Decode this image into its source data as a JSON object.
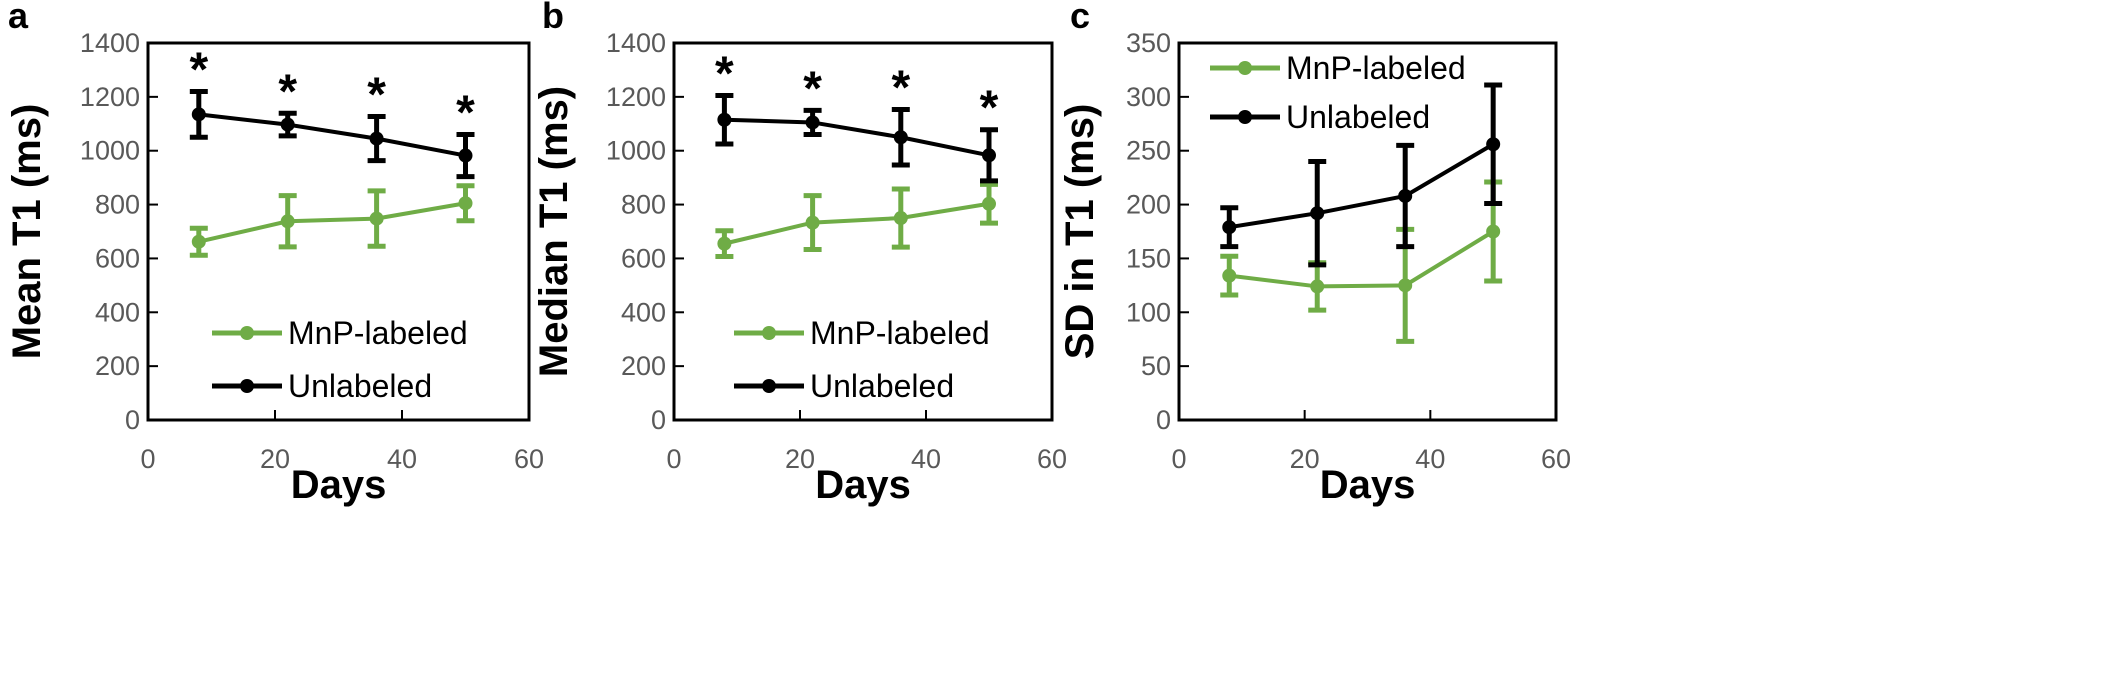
{
  "chart_data": [
    {
      "panel": "a",
      "type": "line",
      "xlabel": "Days",
      "ylabel": "Mean T1 (ms)",
      "xlim": [
        0,
        60
      ],
      "ylim": [
        0,
        1400
      ],
      "x_ticks": [
        "0",
        "20",
        "40",
        "60"
      ],
      "y_ticks": [
        "0",
        "200",
        "400",
        "600",
        "800",
        "1000",
        "1200",
        "1400"
      ],
      "grid": false,
      "legend": "center",
      "x": [
        8,
        22,
        36,
        50
      ],
      "series": [
        {
          "name": "MnP-labeled",
          "color": "#6fac46",
          "values": [
            662,
            738,
            748,
            805
          ],
          "errors": [
            50,
            95,
            103,
            65
          ]
        },
        {
          "name": "Unlabeled",
          "color": "#000000",
          "values": [
            1135,
            1097,
            1045,
            982
          ],
          "errors": [
            85,
            42,
            82,
            78
          ]
        }
      ],
      "annotations": [
        {
          "text": "*",
          "x": 8
        },
        {
          "text": "*",
          "x": 22
        },
        {
          "text": "*",
          "x": 36
        },
        {
          "text": "*",
          "x": 50
        }
      ]
    },
    {
      "panel": "b",
      "type": "line",
      "xlabel": "Days",
      "ylabel": "Median T1 (ms)",
      "xlim": [
        0,
        60
      ],
      "ylim": [
        0,
        1400
      ],
      "x_ticks": [
        "0",
        "20",
        "40",
        "60"
      ],
      "y_ticks": [
        "0",
        "200",
        "400",
        "600",
        "800",
        "1000",
        "1200",
        "1400"
      ],
      "grid": false,
      "legend": "center",
      "x": [
        8,
        22,
        36,
        50
      ],
      "series": [
        {
          "name": "MnP-labeled",
          "color": "#6fac46",
          "values": [
            655,
            733,
            750,
            803
          ],
          "errors": [
            48,
            100,
            108,
            72
          ]
        },
        {
          "name": "Unlabeled",
          "color": "#000000",
          "values": [
            1115,
            1105,
            1050,
            983
          ],
          "errors": [
            90,
            45,
            103,
            95
          ]
        }
      ],
      "annotations": [
        {
          "text": "*",
          "x": 8
        },
        {
          "text": "*",
          "x": 22
        },
        {
          "text": "*",
          "x": 36
        },
        {
          "text": "*",
          "x": 50
        }
      ]
    },
    {
      "panel": "c",
      "type": "line",
      "xlabel": "Days",
      "ylabel": "SD in T1 (ms)",
      "xlim": [
        0,
        60
      ],
      "ylim": [
        0,
        350
      ],
      "x_ticks": [
        "0",
        "20",
        "40",
        "60"
      ],
      "y_ticks": [
        "0",
        "50",
        "100",
        "150",
        "200",
        "250",
        "300",
        "350"
      ],
      "grid": false,
      "legend": "top-left",
      "x": [
        8,
        22,
        36,
        50
      ],
      "series": [
        {
          "name": "MnP-labeled",
          "color": "#6fac46",
          "values": [
            134,
            124,
            125,
            175
          ],
          "errors": [
            18,
            22,
            52,
            46
          ]
        },
        {
          "name": "Unlabeled",
          "color": "#000000",
          "values": [
            179,
            192,
            208,
            256
          ],
          "errors": [
            18,
            48,
            47,
            55
          ]
        }
      ],
      "annotations": []
    }
  ]
}
